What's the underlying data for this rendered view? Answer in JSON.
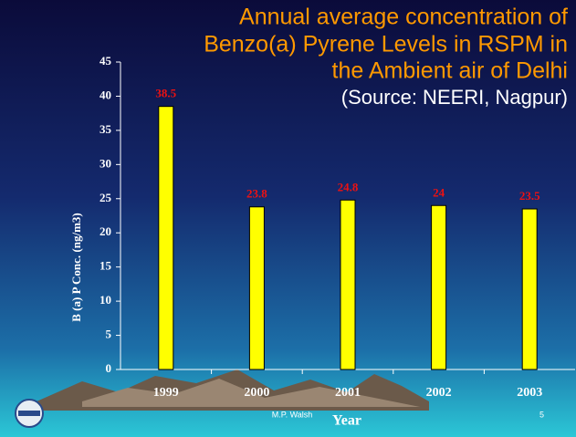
{
  "chart_data": {
    "type": "bar",
    "title": [
      "Annual average concentration of",
      "Benzo(a) Pyrene Levels in RSPM in",
      "the Ambient air of Delhi"
    ],
    "subtitle": "(Source: NEERI, Nagpur)",
    "x_label": "Year",
    "y_label": "B (a) P Conc. (ng/m3)",
    "categories": [
      "1999",
      "2000",
      "2001",
      "2002",
      "2003"
    ],
    "values": [
      38.5,
      23.8,
      24.8,
      24,
      23.5
    ],
    "color": "#ffff00",
    "ylim": [
      0,
      45
    ],
    "yticks": [
      0,
      5,
      10,
      15,
      20,
      25,
      30,
      35,
      40,
      45
    ]
  },
  "footer": {
    "author": "M.P. Walsh",
    "page": "5"
  }
}
